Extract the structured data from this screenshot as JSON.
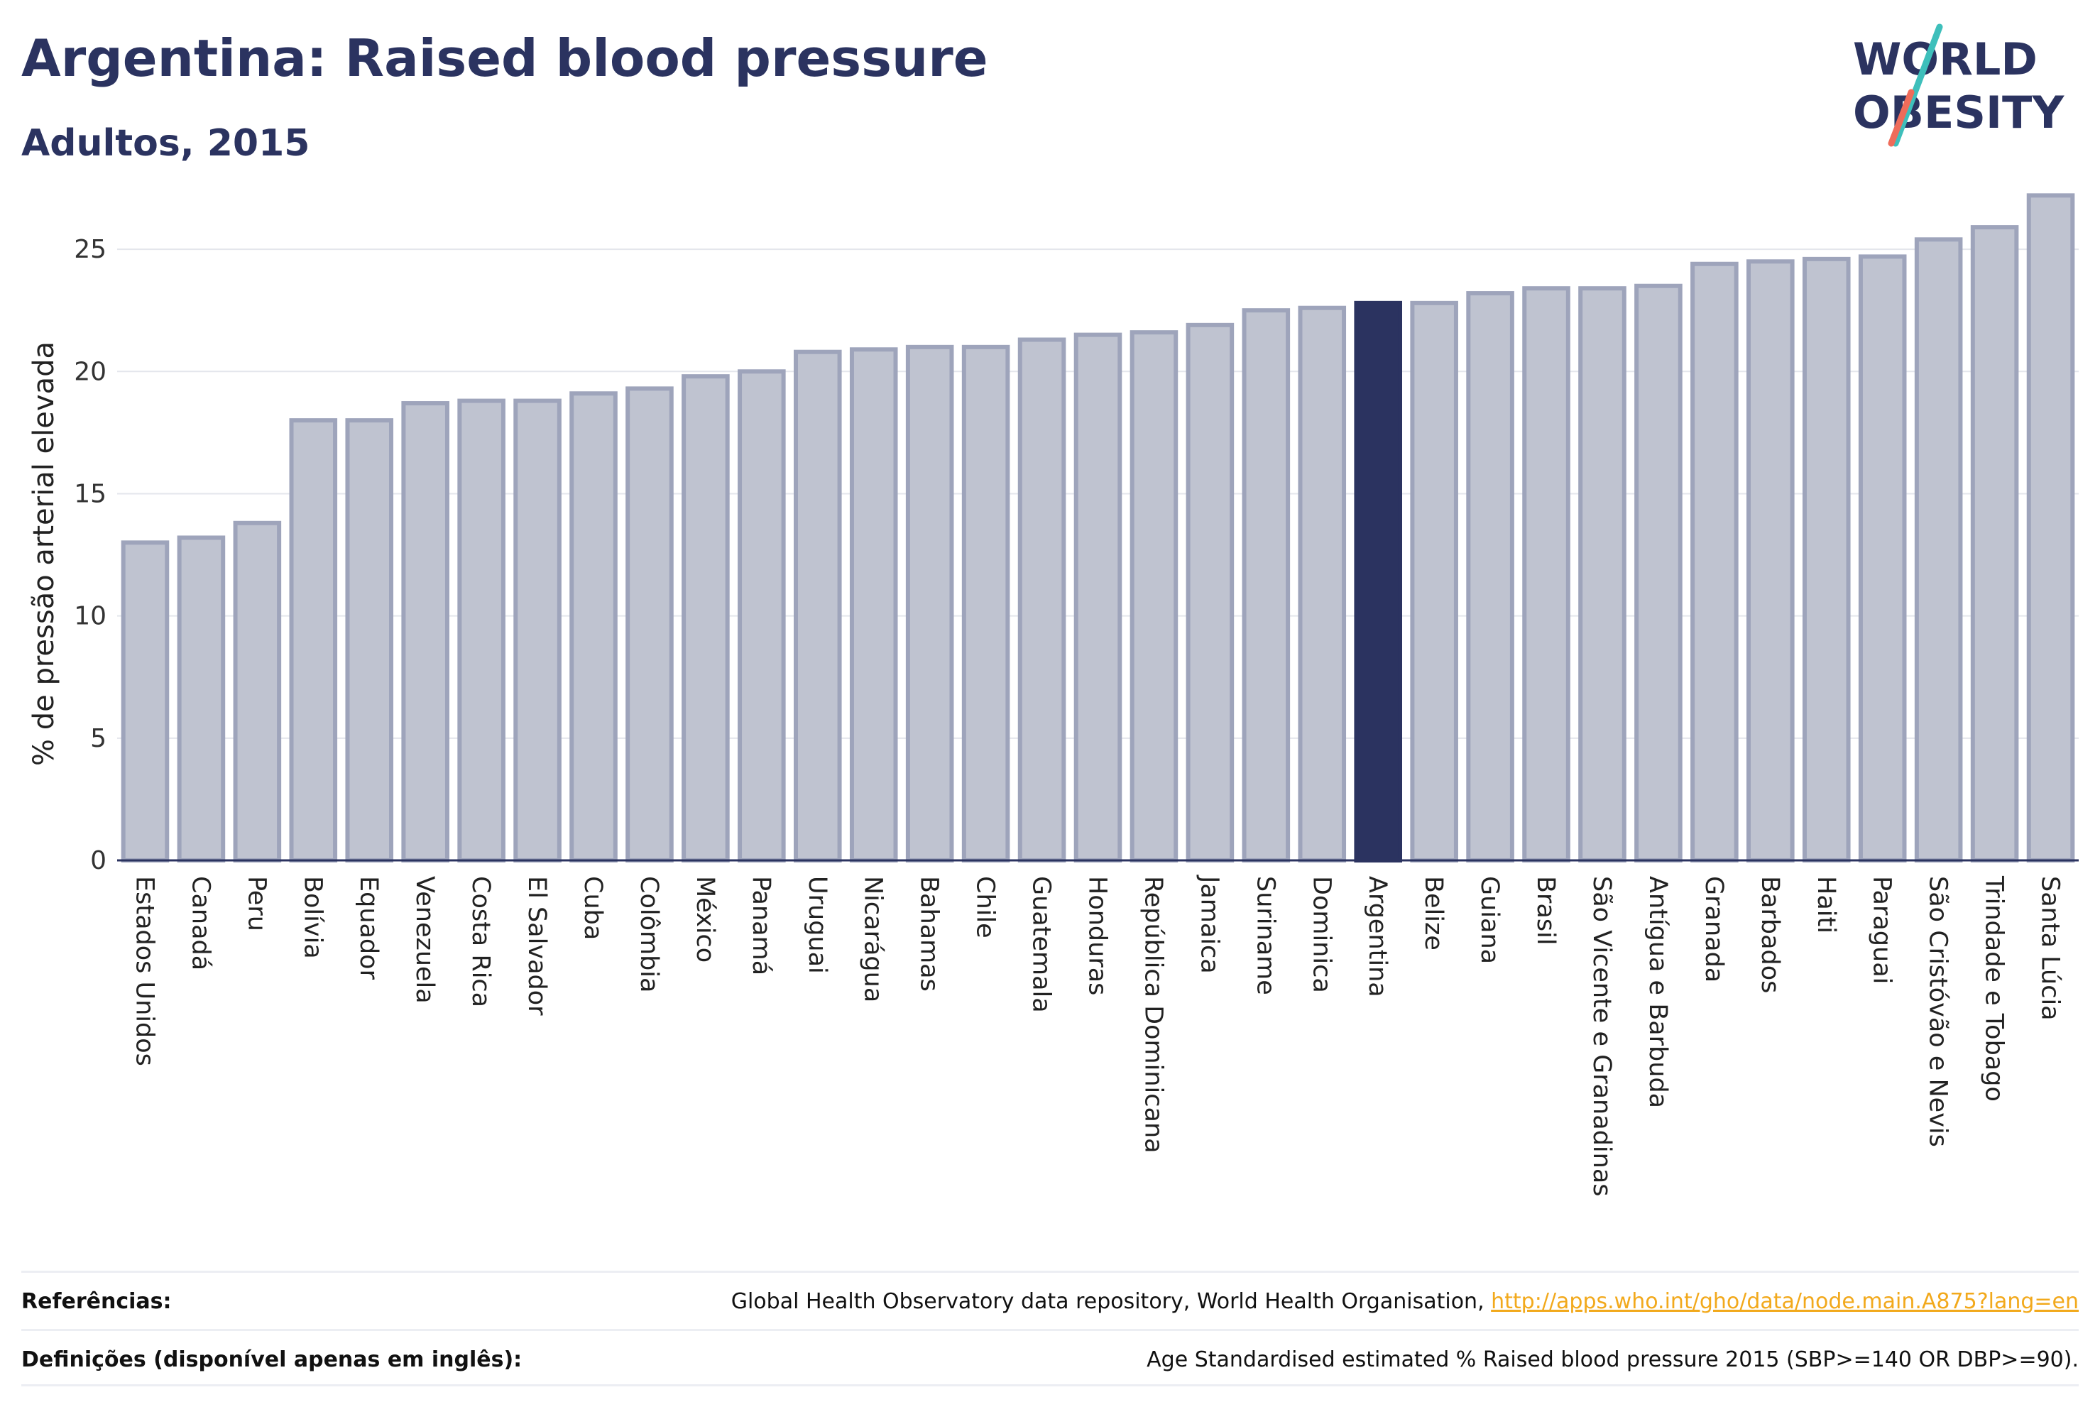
{
  "header": {
    "title": "Argentina: Raised blood pressure",
    "subtitle": "Adultos, 2015",
    "logo": {
      "line1": "WORLD",
      "line2": "OBESITY"
    }
  },
  "colors": {
    "highlight": "#2b3360",
    "bar_fill": "#bfc3d0",
    "bar_stroke": "#9ea4bb",
    "axis": "#2b3360",
    "link": "#f2a91c",
    "logo_teal": "#3ebfbb",
    "logo_coral": "#ef6c5a"
  },
  "chart_data": {
    "type": "bar",
    "title": "Argentina: Raised blood pressure",
    "subtitle": "Adultos, 2015",
    "xlabel": "",
    "ylabel": "% de pressão arterial elevada",
    "ylim": [
      0,
      27.5
    ],
    "yticks": [
      0,
      5,
      10,
      15,
      20,
      25
    ],
    "grid": true,
    "highlight": "Argentina",
    "categories": [
      "Estados Unidos",
      "Canadá",
      "Peru",
      "Bolívia",
      "Equador",
      "Venezuela",
      "Costa Rica",
      "El Salvador",
      "Cuba",
      "Colômbia",
      "México",
      "Panamá",
      "Uruguai",
      "Nicarágua",
      "Bahamas",
      "Chile",
      "Guatemala",
      "Honduras",
      "República Dominicana",
      "Jamaica",
      "Suriname",
      "Dominica",
      "Argentina",
      "Belize",
      "Guiana",
      "Brasil",
      "São Vicente e Granadinas",
      "Antígua e Barbuda",
      "Granada",
      "Barbados",
      "Haiti",
      "Paraguai",
      "São Cristóvão e Nevis",
      "Trindade e Tobago",
      "Santa Lúcia"
    ],
    "values": [
      13.0,
      13.2,
      13.8,
      18.0,
      18.0,
      18.7,
      18.8,
      18.8,
      19.1,
      19.3,
      19.8,
      20.0,
      20.8,
      20.9,
      21.0,
      21.0,
      21.3,
      21.5,
      21.6,
      21.9,
      22.5,
      22.6,
      22.8,
      22.8,
      23.2,
      23.4,
      23.4,
      23.5,
      24.4,
      24.5,
      24.6,
      24.7,
      25.4,
      25.9,
      27.2
    ]
  },
  "footer": {
    "references_label": "Referências:",
    "references_text": "Global Health Observatory data repository, World Health Organisation, ",
    "references_link": "http://apps.who.int/gho/data/node.main.A875?lang=en",
    "definitions_label": "Definições (disponível apenas em inglês):",
    "definitions_text": "Age Standardised estimated % Raised blood pressure 2015 (SBP>=140 OR DBP>=90)."
  }
}
